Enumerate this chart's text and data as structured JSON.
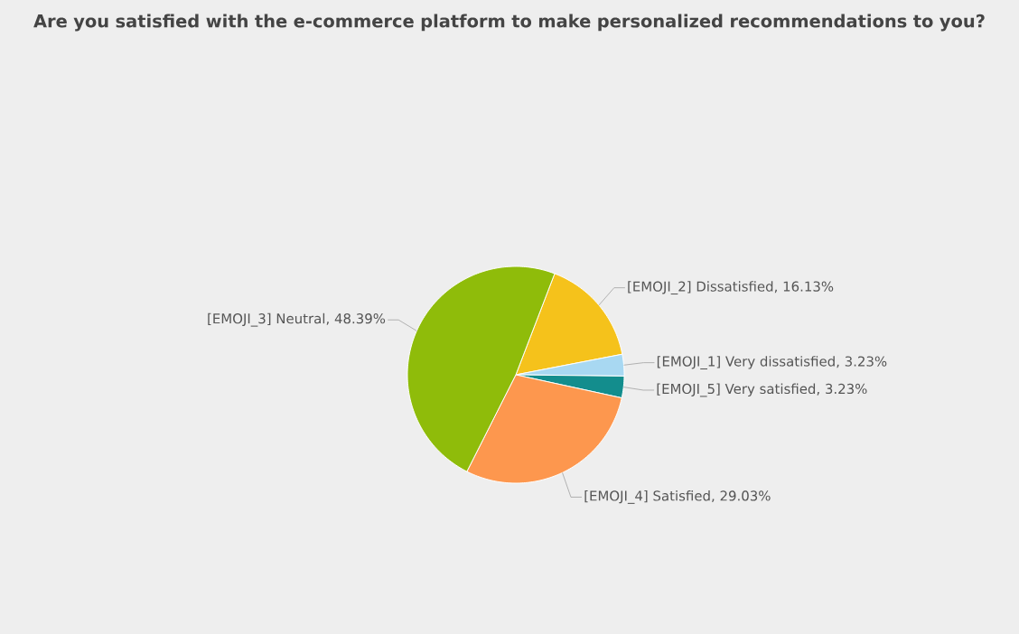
{
  "chart_data": {
    "type": "pie",
    "title": "Are you satisfied with the e-commerce platform to make personalized recommendations to you?",
    "categories": [
      "[EMOJI_2] Dissatisfied",
      "[EMOJI_1] Very dissatisfied",
      "[EMOJI_5] Very satisfied",
      "[EMOJI_4] Satisfied",
      "[EMOJI_3] Neutral"
    ],
    "values": [
      16.13,
      3.23,
      3.23,
      29.03,
      48.39
    ],
    "colors": [
      "#f5c21b",
      "#a8d8f2",
      "#138d8d",
      "#fd974e",
      "#8fbc0a"
    ],
    "value_labels": [
      ", 16.13%",
      ", 3.23%",
      ", 3.23%",
      ", 29.03%",
      ", 48.39%"
    ],
    "legend": false
  }
}
